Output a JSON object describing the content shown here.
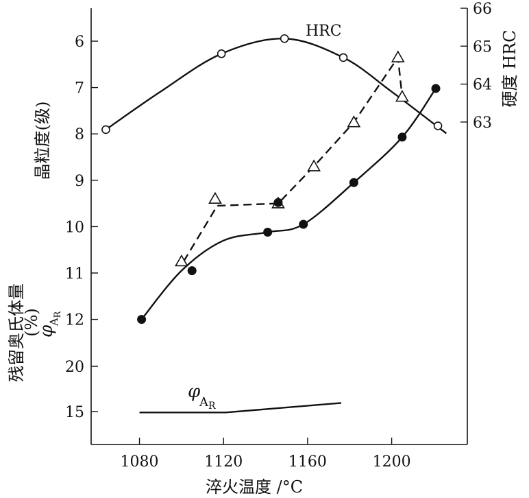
{
  "chart_data": {
    "type": "line",
    "xlabel": "淬火温度 /°C",
    "x_ticks": [
      1080,
      1120,
      1160,
      1200
    ],
    "xlim": [
      1057,
      1236
    ],
    "ylabel_left_top": "晶粒度(级)",
    "ylabel_left_bottom": "残留奥氏体量",
    "ylabel_left_bottom_unit": "(%)",
    "ylabel_left_symbol": "φ",
    "ylabel_left_symbol_sub": "AR",
    "ylabel_right": "硬度 HRC",
    "y_left_grain_ticks": [
      6,
      7,
      8,
      9,
      10,
      11,
      12
    ],
    "y_left_grain_lim": [
      5.3,
      12.0
    ],
    "y_left_retained_ticks": [
      20,
      15
    ],
    "y_right_ticks": [
      66,
      65,
      64,
      63
    ],
    "y_right_lim": [
      62.5,
      66
    ],
    "series": [
      {
        "name": "HRC",
        "axis": "right",
        "marker": "open-circle",
        "line": "solid",
        "points": [
          [
            1064,
            62.8
          ],
          [
            1119,
            64.8
          ],
          [
            1149,
            65.2
          ],
          [
            1177,
            64.7
          ],
          [
            1222,
            62.9
          ]
        ],
        "curve": [
          [
            1064,
            62.8
          ],
          [
            1090,
            63.8
          ],
          [
            1119,
            64.8
          ],
          [
            1149,
            65.2
          ],
          [
            1177,
            64.7
          ],
          [
            1200,
            63.8
          ],
          [
            1226,
            62.7
          ]
        ]
      },
      {
        "name": "",
        "axis": "left-grain",
        "marker": "open-triangle",
        "line": "dashed",
        "points": [
          [
            1100,
            10.75
          ],
          [
            1116,
            9.4
          ],
          [
            1146,
            9.5
          ],
          [
            1163,
            8.7
          ],
          [
            1182,
            7.75
          ],
          [
            1203,
            6.35
          ],
          [
            1205,
            7.2
          ]
        ],
        "curve": [
          [
            1101,
            10.75
          ],
          [
            1117,
            9.55
          ],
          [
            1146,
            9.5
          ],
          [
            1163,
            8.7
          ],
          [
            1182,
            7.75
          ],
          [
            1203,
            6.35
          ],
          [
            1205,
            7.2
          ]
        ]
      },
      {
        "name": "",
        "axis": "left-grain",
        "marker": "filled-circle",
        "line": "solid",
        "points": [
          [
            1081,
            12.0
          ],
          [
            1105,
            10.95
          ],
          [
            1141,
            10.12
          ],
          [
            1146,
            9.48
          ],
          [
            1158,
            9.95
          ],
          [
            1182,
            9.05
          ],
          [
            1205,
            8.07
          ],
          [
            1221,
            7.02
          ]
        ],
        "curve": [
          [
            1081,
            12.0
          ],
          [
            1100,
            10.95
          ],
          [
            1120,
            10.3
          ],
          [
            1141,
            10.12
          ],
          [
            1158,
            9.95
          ],
          [
            1182,
            9.05
          ],
          [
            1205,
            8.07
          ],
          [
            1221,
            7.02
          ]
        ]
      },
      {
        "name": "φAR",
        "axis": "left-retained",
        "marker": "none",
        "line": "solid",
        "curve": [
          [
            1080,
            15.1
          ],
          [
            1121,
            15.1
          ],
          [
            1176,
            14.05
          ]
        ]
      }
    ]
  }
}
